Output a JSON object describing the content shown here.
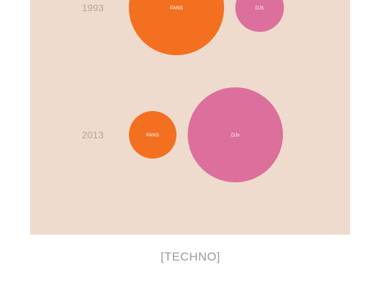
{
  "chart_data": {
    "type": "bubble",
    "caption": "[TECHNO]",
    "colors": {
      "fans": "#f37021",
      "djs": "#dc6f9c",
      "background": "#efdbcd",
      "year_text": "#b4a69c"
    },
    "rows": [
      {
        "year": "1993",
        "bubbles": [
          {
            "label": "FANS",
            "relative_size": 1.0,
            "color": "#f37021"
          },
          {
            "label": "DJs",
            "relative_size": 0.26,
            "color": "#dc6f9c"
          }
        ]
      },
      {
        "year": "2013",
        "bubbles": [
          {
            "label": "FANS",
            "relative_size": 0.25,
            "color": "#f37021"
          },
          {
            "label": "DJs",
            "relative_size": 1.0,
            "color": "#dc6f9c"
          }
        ]
      }
    ]
  }
}
